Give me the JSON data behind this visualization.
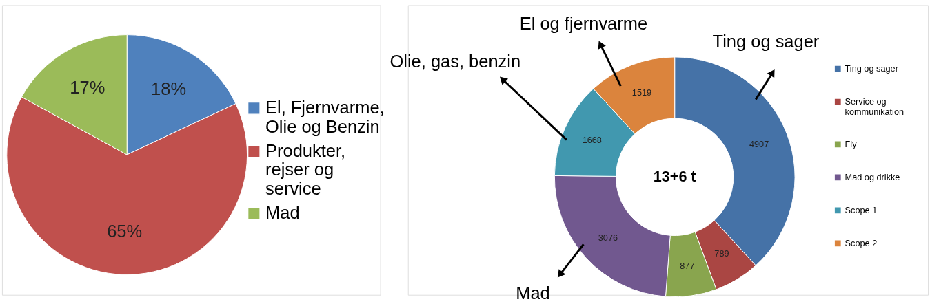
{
  "chart_data": [
    {
      "type": "pie",
      "categories": [
        "El, Fjernvarme, Olie og Benzin",
        "Produkter, rejser og service",
        "Mad"
      ],
      "values": [
        18,
        65,
        17
      ],
      "colors": [
        "#4f81bd",
        "#c0504d",
        "#9bbb59"
      ],
      "value_labels": [
        "18%",
        "65%",
        "17%"
      ],
      "legend": "right"
    },
    {
      "type": "donut",
      "categories": [
        "Ting og sager",
        "Service og kommunikation",
        "Fly",
        "Mad og drikke",
        "Scope 1",
        "Scope 2"
      ],
      "values": [
        4907,
        789,
        877,
        3076,
        1668,
        1519
      ],
      "colors": [
        "#4572a7",
        "#aa4643",
        "#89a54e",
        "#71588f",
        "#4198af",
        "#db843d"
      ],
      "data_labels": true,
      "legend": "right",
      "annotations": [
        "13+6 t",
        "Ting og sager",
        "El og fjernvarme",
        "Olie, gas, benzin",
        "Mad"
      ]
    }
  ]
}
